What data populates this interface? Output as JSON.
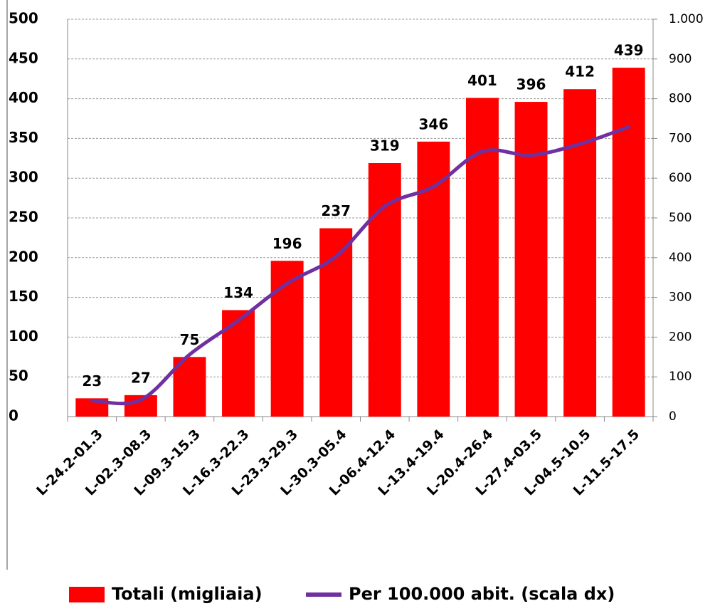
{
  "chart_data": {
    "type": "bar",
    "categories": [
      "L-24.2-01.3",
      "L-02.3-08.3",
      "L-09.3-15.3",
      "L-16.3-22.3",
      "L-23.3-29.3",
      "L-30.3-05.4",
      "L-06.4-12.4",
      "L-13.4-19.4",
      "L-20.4-26.4",
      "L-27.4-03.5",
      "L-04.5-10.5",
      "L-11.5-17.5"
    ],
    "series": [
      {
        "name": "Totali (migliaia)",
        "type": "bar",
        "color": "#ff0000",
        "values": [
          23,
          27,
          75,
          134,
          196,
          237,
          319,
          346,
          401,
          396,
          412,
          439
        ]
      },
      {
        "name": "Per 100.000 abit. (scala dx)",
        "type": "line",
        "axis": "y2",
        "color": "#7030a0",
        "values": [
          40,
          42,
          156,
          242,
          335,
          403,
          529,
          579,
          667,
          658,
          686,
          729
        ]
      }
    ],
    "ylim": [
      0,
      500
    ],
    "yticks": [
      0,
      50,
      100,
      150,
      200,
      250,
      300,
      350,
      400,
      450,
      500
    ],
    "y2lim": [
      0,
      1000
    ],
    "y2ticks": [
      0,
      100,
      200,
      300,
      400,
      500,
      600,
      700,
      800,
      900,
      {
        "value": 1000,
        "label": "1.000"
      }
    ],
    "grid": true,
    "legend": "bottom"
  }
}
